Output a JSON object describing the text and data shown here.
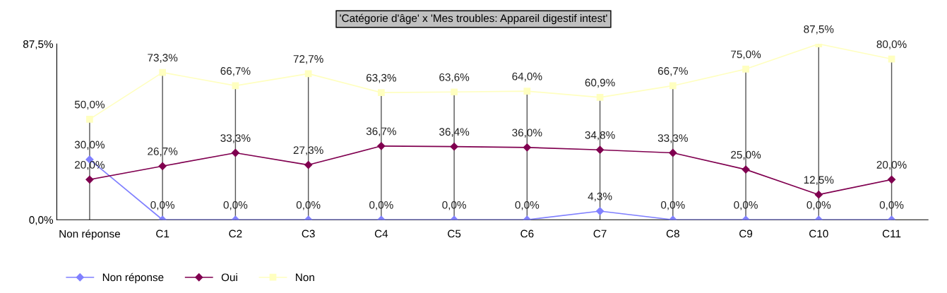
{
  "chart_data": {
    "type": "line",
    "title": "'Catégorie d'âge' x 'Mes troubles: Appareil digestif intest'",
    "categories": [
      "Non réponse",
      "C1",
      "C2",
      "C3",
      "C4",
      "C5",
      "C6",
      "C7",
      "C8",
      "C9",
      "C10",
      "C11"
    ],
    "series": [
      {
        "name": "Non réponse",
        "color": "#8080ff",
        "marker": "diamond",
        "values": [
          30.0,
          0.0,
          0.0,
          0.0,
          0.0,
          0.0,
          0.0,
          4.3,
          0.0,
          0.0,
          0.0,
          0.0
        ],
        "value_labels": [
          "30,0%",
          "0,0%",
          "0,0%",
          "0,0%",
          "0,0%",
          "0,0%",
          "0,0%",
          "4,3%",
          "0,0%",
          "0,0%",
          "0,0%",
          "0,0%"
        ]
      },
      {
        "name": "Oui",
        "color": "#800050",
        "marker": "diamond",
        "values": [
          20.0,
          26.7,
          33.3,
          27.3,
          36.7,
          36.4,
          36.0,
          34.8,
          33.3,
          25.0,
          12.5,
          20.0
        ],
        "value_labels": [
          "20,0%",
          "26,7%",
          "33,3%",
          "27,3%",
          "36,7%",
          "36,4%",
          "36,0%",
          "34,8%",
          "33,3%",
          "25,0%",
          "12,5%",
          "20,0%"
        ]
      },
      {
        "name": "Non",
        "color": "#ffffc0",
        "marker": "square",
        "values": [
          50.0,
          73.3,
          66.7,
          72.7,
          63.3,
          63.6,
          64.0,
          60.9,
          66.7,
          75.0,
          87.5,
          80.0
        ],
        "value_labels": [
          "50,0%",
          "73,3%",
          "66,7%",
          "72,7%",
          "63,3%",
          "63,6%",
          "64,0%",
          "60,9%",
          "66,7%",
          "75,0%",
          "87,5%",
          "80,0%"
        ]
      }
    ],
    "ylim": [
      0,
      87.5
    ],
    "yticks": [
      {
        "value": 0,
        "label": "0,0%"
      },
      {
        "value": 87.5,
        "label": "87,5%"
      }
    ],
    "grid": "x",
    "legend": "bottom left"
  }
}
